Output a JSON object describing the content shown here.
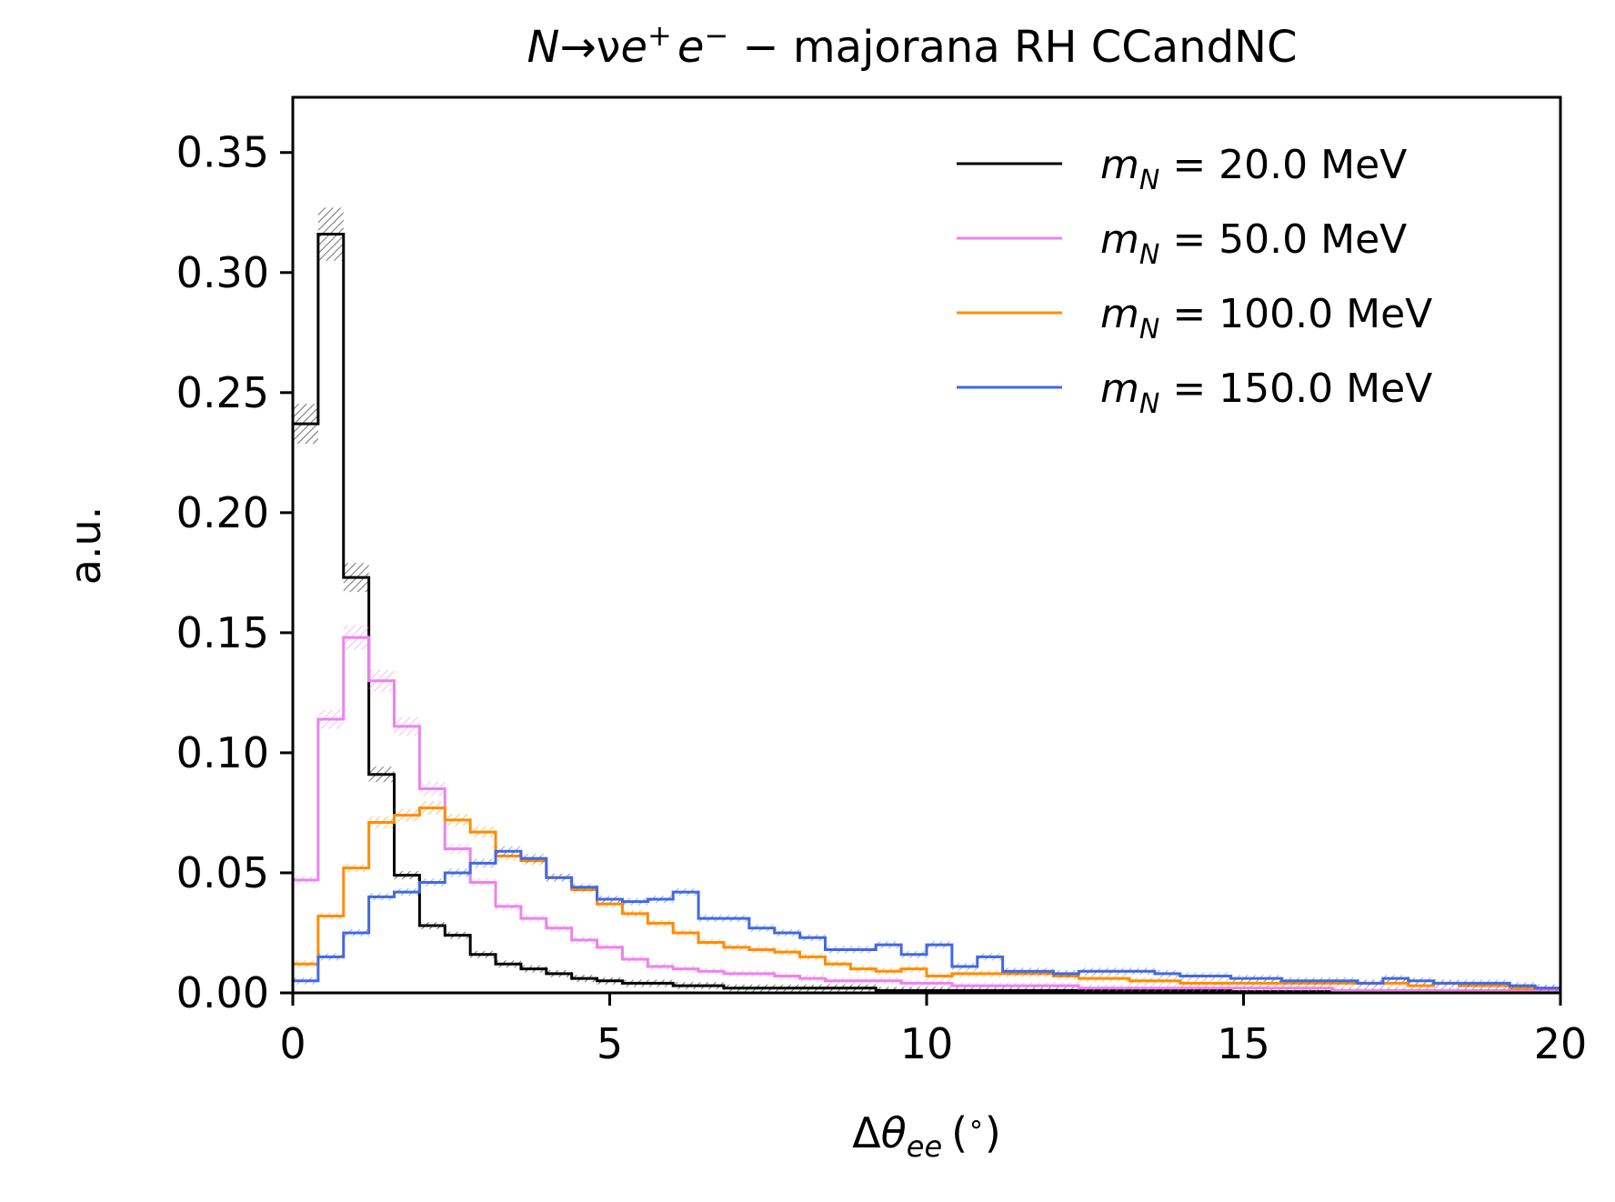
{
  "chart_data": {
    "type": "step",
    "title_parts": [
      "N",
      "→ν",
      "e",
      "+",
      "e",
      "−",
      " − majorana RH CCandNC"
    ],
    "xlabel_parts": [
      "Δ",
      "θ",
      "ee",
      "(",
      "∘",
      ")"
    ],
    "ylabel": "a.u.",
    "xlim": [
      0,
      20
    ],
    "ylim": [
      0,
      0.373
    ],
    "xticks": [
      0,
      5,
      10,
      15,
      20
    ],
    "xtick_labels": [
      "0",
      "5",
      "10",
      "15",
      "20"
    ],
    "yticks": [
      0.0,
      0.05,
      0.1,
      0.15,
      0.2,
      0.25,
      0.3,
      0.35
    ],
    "ytick_labels": [
      "0.00",
      "0.05",
      "0.10",
      "0.15",
      "0.20",
      "0.25",
      "0.30",
      "0.35"
    ],
    "grid": false,
    "legend_position": "top-right",
    "bin_edges": [
      0,
      0.4,
      0.8,
      1.2,
      1.6,
      2.0,
      2.4,
      2.8,
      3.2,
      3.6,
      4.0,
      4.4,
      4.8,
      5.2,
      5.6,
      6.0,
      6.4,
      6.8,
      7.2,
      7.6,
      8.0,
      8.4,
      8.8,
      9.2,
      9.6,
      10.0,
      10.4,
      10.8,
      11.2,
      11.6,
      12.0,
      12.4,
      12.8,
      13.2,
      13.6,
      14.0,
      14.4,
      14.8,
      15.2,
      15.6,
      16.0,
      16.4,
      16.8,
      17.2,
      17.6,
      18.0,
      18.4,
      18.8,
      19.2,
      19.6,
      20.0
    ],
    "series": [
      {
        "name_parts": [
          "m",
          "N",
          " = 20.0 MeV"
        ],
        "color": "#000000",
        "values": [
          0.237,
          0.316,
          0.173,
          0.091,
          0.049,
          0.028,
          0.024,
          0.016,
          0.012,
          0.01,
          0.008,
          0.006,
          0.005,
          0.004,
          0.004,
          0.003,
          0.003,
          0.002,
          0.002,
          0.002,
          0.002,
          0.002,
          0.002,
          0.001,
          0.001,
          0.001,
          0.001,
          0.001,
          0.001,
          0.001,
          0.001,
          0.001,
          0.001,
          0.001,
          0.001,
          0.001,
          0.001,
          0.0005,
          0.0005,
          0.0005,
          0.0005,
          0.0005,
          0.0005,
          0.0005,
          0.0005,
          0.0005,
          0.0005,
          0.0005,
          0.0005,
          0.0005
        ]
      },
      {
        "name_parts": [
          "m",
          "N",
          " = 50.0 MeV"
        ],
        "color": "#ee82ee",
        "values": [
          0.047,
          0.114,
          0.148,
          0.13,
          0.111,
          0.085,
          0.06,
          0.046,
          0.036,
          0.031,
          0.027,
          0.022,
          0.019,
          0.014,
          0.011,
          0.01,
          0.009,
          0.008,
          0.008,
          0.007,
          0.006,
          0.005,
          0.005,
          0.005,
          0.004,
          0.004,
          0.003,
          0.003,
          0.003,
          0.003,
          0.003,
          0.002,
          0.002,
          0.002,
          0.002,
          0.002,
          0.002,
          0.002,
          0.002,
          0.002,
          0.002,
          0.001,
          0.001,
          0.001,
          0.001,
          0.001,
          0.001,
          0.001,
          0.001,
          0.001
        ]
      },
      {
        "name_parts": [
          "m",
          "N",
          " = 100.0 MeV"
        ],
        "color": "#ff8c00",
        "values": [
          0.012,
          0.032,
          0.052,
          0.071,
          0.074,
          0.077,
          0.072,
          0.067,
          0.057,
          0.055,
          0.048,
          0.043,
          0.037,
          0.033,
          0.029,
          0.025,
          0.021,
          0.019,
          0.018,
          0.017,
          0.015,
          0.012,
          0.01,
          0.009,
          0.01,
          0.007,
          0.008,
          0.008,
          0.008,
          0.008,
          0.007,
          0.006,
          0.006,
          0.005,
          0.005,
          0.004,
          0.004,
          0.004,
          0.004,
          0.004,
          0.004,
          0.004,
          0.004,
          0.004,
          0.003,
          0.004,
          0.003,
          0.003,
          0.002,
          0.002
        ]
      },
      {
        "name_parts": [
          "m",
          "N",
          " = 150.0 MeV"
        ],
        "color": "#4169e1",
        "values": [
          0.005,
          0.015,
          0.025,
          0.04,
          0.042,
          0.046,
          0.05,
          0.054,
          0.059,
          0.056,
          0.048,
          0.044,
          0.039,
          0.038,
          0.039,
          0.042,
          0.031,
          0.031,
          0.027,
          0.025,
          0.023,
          0.018,
          0.018,
          0.02,
          0.016,
          0.02,
          0.011,
          0.015,
          0.009,
          0.009,
          0.008,
          0.009,
          0.009,
          0.009,
          0.008,
          0.007,
          0.007,
          0.006,
          0.006,
          0.005,
          0.005,
          0.005,
          0.004,
          0.006,
          0.005,
          0.004,
          0.004,
          0.004,
          0.003,
          0.002
        ]
      }
    ]
  }
}
